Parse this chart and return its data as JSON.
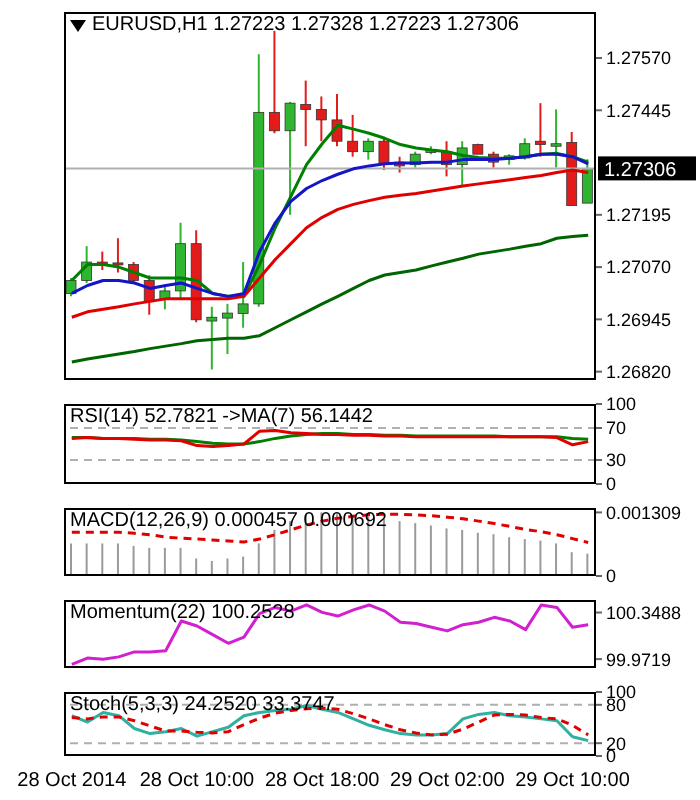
{
  "chart_data": [
    {
      "type": "candlestick",
      "title": "EURUSD,H1  1.27223 1.27328 1.27223 1.27306",
      "tick_labels": "y",
      "categories": [
        null,
        null,
        null,
        null,
        null,
        null,
        null,
        null,
        null,
        null,
        null,
        null,
        null,
        null,
        null,
        null,
        null,
        null,
        null,
        null,
        null,
        null,
        null,
        null,
        null,
        null,
        null,
        null,
        null,
        null,
        null,
        null,
        null,
        null
      ],
      "ohlc": [
        [
          1.27007,
          1.27044,
          1.27,
          1.27038
        ],
        [
          1.27038,
          1.2712,
          1.27032,
          1.27082
        ],
        [
          1.27082,
          1.27107,
          1.27063,
          1.27076
        ],
        [
          1.2708,
          1.27139,
          1.27057,
          1.27076
        ],
        [
          1.27076,
          1.27082,
          1.27032,
          1.27038
        ],
        [
          1.27038,
          1.2705,
          1.26956,
          1.26988
        ],
        [
          1.26994,
          1.27026,
          1.26969,
          1.27013
        ],
        [
          1.27013,
          1.27176,
          1.26994,
          1.27126
        ],
        [
          1.27126,
          1.27158,
          1.26938,
          1.26944
        ],
        [
          1.26941,
          1.26975,
          1.26825,
          1.2695
        ],
        [
          1.26948,
          1.26982,
          1.26862,
          1.2696
        ],
        [
          1.26959,
          1.27082,
          1.26925,
          1.26982
        ],
        [
          1.26982,
          1.27579,
          1.26975,
          1.2744
        ],
        [
          1.2744,
          1.27635,
          1.2739,
          1.27396
        ],
        [
          1.27396,
          1.27465,
          1.27195,
          1.27462
        ],
        [
          1.27459,
          1.27516,
          1.27359,
          1.27447
        ],
        [
          1.27447,
          1.27478,
          1.27371,
          1.27422
        ],
        [
          1.27422,
          1.27484,
          1.27359,
          1.27371
        ],
        [
          1.27371,
          1.27434,
          1.27334,
          1.27346
        ],
        [
          1.27346,
          1.27378,
          1.27327,
          1.27371
        ],
        [
          1.27371,
          1.27378,
          1.27302,
          1.27315
        ],
        [
          1.27321,
          1.27334,
          1.27296,
          1.27312
        ],
        [
          1.27315,
          1.27346,
          1.27308,
          1.2734
        ],
        [
          1.27344,
          1.27359,
          1.2734,
          1.2735
        ],
        [
          1.27346,
          1.27371,
          1.27287,
          1.27315
        ],
        [
          1.27315,
          1.27371,
          1.27264,
          1.27355
        ],
        [
          1.27363,
          1.27365,
          1.2734,
          1.2734
        ],
        [
          1.2734,
          1.27346,
          1.27308,
          1.27321
        ],
        [
          1.27327,
          1.2734,
          1.27315,
          1.27336
        ],
        [
          1.27331,
          1.27378,
          1.27327,
          1.27365
        ],
        [
          1.27371,
          1.27462,
          1.27334,
          1.27363
        ],
        [
          1.27359,
          1.27447,
          1.27308,
          1.27365
        ],
        [
          1.27368,
          1.27393,
          1.27217,
          1.27217
        ],
        [
          1.27223,
          1.27328,
          1.27223,
          1.27306
        ]
      ],
      "colors": [
        "#2fb52f",
        "#2fb52f",
        "#e41b1b",
        "#e41b1b",
        "#e41b1b",
        "#e41b1b",
        "#2fb52f",
        "#2fb52f",
        "#e41b1b",
        "#2fb52f",
        "#2fb52f",
        "#2fb52f",
        "#2fb52f",
        "#e41b1b",
        "#2fb52f",
        "#e41b1b",
        "#e41b1b",
        "#e41b1b",
        "#e41b1b",
        "#2fb52f",
        "#e41b1b",
        "#e41b1b",
        "#2fb52f",
        "#2fb52f",
        "#e41b1b",
        "#2fb52f",
        "#e41b1b",
        "#e41b1b",
        "#2fb52f",
        "#2fb52f",
        "#e41b1b",
        "#2fb52f",
        "#e41b1b",
        "#2fb52f"
      ],
      "series": [
        {
          "type": "line",
          "color": "#008000",
          "values": [
            1.27038,
            1.27076,
            1.27076,
            1.2707,
            1.27057,
            1.27044,
            1.27044,
            1.27044,
            1.27038,
            1.27007,
            1.27,
            1.27,
            1.27076,
            1.27164,
            1.27239,
            1.27315,
            1.27365,
            1.27409,
            1.274,
            1.2739,
            1.27378,
            1.27363,
            1.27355,
            1.2735,
            1.27346,
            1.27337,
            1.27332,
            1.2733,
            1.2733,
            1.27334,
            1.2734,
            1.27342,
            1.27334,
            1.27321
          ]
        },
        {
          "type": "line",
          "color": "#006400",
          "values": [
            1.26843,
            1.2685,
            1.26856,
            1.26862,
            1.26868,
            1.26875,
            1.26881,
            1.26887,
            1.26894,
            1.26897,
            1.269,
            1.269,
            1.26906,
            1.26925,
            1.26944,
            1.26963,
            1.26982,
            1.27,
            1.27019,
            1.27038,
            1.27051,
            1.27057,
            1.27063,
            1.27073,
            1.27082,
            1.27091,
            1.27101,
            1.27107,
            1.27113,
            1.2712,
            1.27126,
            1.27139,
            1.27143,
            1.27146
          ]
        },
        {
          "type": "line",
          "color": "#e00000",
          "values": [
            1.2695,
            1.26963,
            1.26969,
            1.26975,
            1.26982,
            1.26988,
            1.26994,
            1.26994,
            1.26994,
            1.26994,
            1.26994,
            1.27,
            1.27044,
            1.27088,
            1.27126,
            1.27164,
            1.27189,
            1.27208,
            1.2722,
            1.27229,
            1.27237,
            1.27242,
            1.27246,
            1.27252,
            1.27258,
            1.27264,
            1.27269,
            1.27274,
            1.27279,
            1.27284,
            1.27289,
            1.27296,
            1.27302,
            1.27296
          ]
        },
        {
          "type": "line",
          "color": "#1414c8",
          "values": [
            1.27007,
            1.27026,
            1.27038,
            1.27038,
            1.27032,
            1.27019,
            1.27026,
            1.27032,
            1.27019,
            1.27007,
            1.27,
            1.27007,
            1.27107,
            1.27176,
            1.27227,
            1.27258,
            1.27277,
            1.27292,
            1.27305,
            1.27312,
            1.27317,
            1.27319,
            1.27319,
            1.27321,
            1.27321,
            1.27327,
            1.27327,
            1.27327,
            1.2733,
            1.27334,
            1.2734,
            1.2734,
            1.27334,
            1.27317
          ]
        }
      ],
      "ylim": [
        1.268,
        1.2768
      ],
      "yticks": [
        {
          "value": 1.2682,
          "label": "1.26820"
        },
        {
          "value": 1.26945,
          "label": "1.26945"
        },
        {
          "value": 1.2707,
          "label": "1.27070"
        },
        {
          "value": 1.27195,
          "label": "1.27195"
        },
        {
          "value": 1.27445,
          "label": "1.27445"
        },
        {
          "value": 1.2757,
          "label": "1.27570"
        }
      ],
      "ref_lines": [
        {
          "axis": "y",
          "value": 1.27306,
          "label": "1.27306",
          "color": "#b0b0b0"
        }
      ]
    },
    {
      "type": "line",
      "title": "RSI(14) 52.7821  ->MA(7) 56.1442",
      "tick_labels": "y",
      "categories": [
        null,
        null,
        null,
        null,
        null,
        null,
        null,
        null,
        null,
        null,
        null,
        null,
        null,
        null,
        null,
        null,
        null,
        null,
        null,
        null,
        null,
        null,
        null,
        null,
        null,
        null,
        null,
        null,
        null,
        null,
        null,
        null,
        null,
        null
      ],
      "series": [
        {
          "color": "#008000",
          "values": [
            58,
            58,
            57,
            57,
            57,
            56,
            56,
            55,
            53,
            51,
            50,
            50,
            53,
            57,
            60,
            62,
            63,
            63,
            62,
            62,
            61,
            61,
            60,
            60,
            60,
            60,
            60,
            60,
            59,
            59,
            59,
            59,
            57,
            56
          ]
        },
        {
          "color": "#e00000",
          "values": [
            57,
            58,
            57,
            57,
            56,
            55,
            55,
            54,
            48,
            47,
            48,
            50,
            66,
            67,
            64,
            63,
            62,
            62,
            61,
            61,
            60,
            60,
            59,
            59,
            59,
            59,
            59,
            59,
            59,
            59,
            59,
            58,
            49,
            53
          ]
        }
      ],
      "ylim": [
        0,
        100
      ],
      "yticks": [
        0,
        30,
        70,
        100
      ],
      "ref_lines": [
        {
          "axis": "y",
          "value": 70,
          "color": "#b0b0b0",
          "line_style": "dashed"
        },
        {
          "axis": "y",
          "value": 30,
          "color": "#b0b0b0",
          "line_style": "dashed"
        }
      ]
    },
    {
      "type": "bar",
      "title": "MACD(12,26,9) 0.000457 0.000692",
      "tick_labels": "y",
      "categories": [
        null,
        null,
        null,
        null,
        null,
        null,
        null,
        null,
        null,
        null,
        null,
        null,
        null,
        null,
        null,
        null,
        null,
        null,
        null,
        null,
        null,
        null,
        null,
        null,
        null,
        null,
        null,
        null,
        null,
        null,
        null,
        null,
        null,
        null
      ],
      "series": [
        {
          "type": "bar",
          "color": "#9a9a9a",
          "values": [
            0.00067,
            0.00067,
            0.00067,
            0.00067,
            0.00062,
            0.00058,
            0.00058,
            0.00058,
            0.00036,
            0.00031,
            0.00036,
            0.0004,
            0.00067,
            0.00095,
            0.00113,
            0.00126,
            0.00131,
            0.00127,
            0.00126,
            0.00122,
            0.00118,
            0.00113,
            0.00109,
            0.00104,
            0.00098,
            0.00095,
            0.00089,
            0.00086,
            0.0008,
            0.00076,
            0.00073,
            0.00067,
            0.00049,
            0.00046
          ]
        },
        {
          "type": "line",
          "color": "#e00000",
          "line_style": "dashed",
          "values": [
            0.0009,
            0.0009,
            0.0009,
            0.0009,
            0.00088,
            0.00085,
            0.0008,
            0.00078,
            0.00076,
            0.00074,
            0.00072,
            0.0007,
            0.00076,
            0.00085,
            0.00095,
            0.00105,
            0.00113,
            0.00119,
            0.00123,
            0.00126,
            0.00127,
            0.00127,
            0.00126,
            0.00124,
            0.00121,
            0.00118,
            0.00113,
            0.00108,
            0.00102,
            0.00096,
            0.00091,
            0.00085,
            0.00077,
            0.00069
          ]
        }
      ],
      "ylim": [
        0,
        0.0014
      ],
      "yticks": [
        0,
        0.001309
      ]
    },
    {
      "type": "line",
      "title": "Momentum(22) 100.2528",
      "tick_labels": "y",
      "categories": [
        null,
        null,
        null,
        null,
        null,
        null,
        null,
        null,
        null,
        null,
        null,
        null,
        null,
        null,
        null,
        null,
        null,
        null,
        null,
        null,
        null,
        null,
        null,
        null,
        null,
        null,
        null,
        null,
        null,
        null,
        null,
        null,
        null,
        null
      ],
      "series": [
        {
          "color": "#d020d0",
          "values": [
            99.93,
            99.98,
            99.97,
            99.99,
            100.03,
            100.03,
            100.04,
            100.28,
            100.24,
            100.17,
            100.1,
            100.15,
            100.34,
            100.39,
            100.36,
            100.41,
            100.35,
            100.32,
            100.37,
            100.41,
            100.36,
            100.27,
            100.26,
            100.23,
            100.2,
            100.25,
            100.27,
            100.31,
            100.28,
            100.21,
            100.41,
            100.39,
            100.23,
            100.25
          ]
        }
      ],
      "ylim": [
        99.9,
        100.45
      ],
      "yticks": [
        99.9719,
        100.3488
      ]
    },
    {
      "type": "line",
      "title": "Stoch(5,3,3) 24.2520 33.3747",
      "categories": [
        "28 Oct 2014",
        null,
        null,
        null,
        null,
        null,
        null,
        null,
        "28 Oct 10:00",
        null,
        null,
        null,
        null,
        null,
        null,
        null,
        "28 Oct 18:00",
        null,
        null,
        null,
        null,
        null,
        null,
        null,
        "29 Oct 02:00",
        null,
        null,
        null,
        null,
        null,
        null,
        null,
        "29 Oct 10:00",
        null
      ],
      "series": [
        {
          "color": "#30b0a0",
          "values": [
            63,
            53,
            68,
            63,
            43,
            35,
            38,
            43,
            31,
            38,
            45,
            63,
            68,
            71,
            73,
            79,
            73,
            68,
            58,
            48,
            41,
            35,
            33,
            33,
            35,
            58,
            65,
            68,
            63,
            61,
            58,
            55,
            30,
            24
          ]
        },
        {
          "color": "#e00000",
          "line_style": "dashed",
          "values": [
            60,
            58,
            61,
            61,
            55,
            47,
            39,
            39,
            37,
            36,
            38,
            49,
            59,
            67,
            71,
            74,
            75,
            73,
            66,
            58,
            49,
            41,
            36,
            33,
            34,
            42,
            53,
            64,
            65,
            64,
            60,
            58,
            48,
            33
          ]
        }
      ],
      "ylim": [
        0,
        100
      ],
      "yticks": [
        0,
        20,
        80,
        100
      ],
      "ref_lines": [
        {
          "axis": "y",
          "value": 80,
          "color": "#b0b0b0",
          "line_style": "dashed"
        },
        {
          "axis": "y",
          "value": 20,
          "color": "#b0b0b0",
          "line_style": "dashed"
        }
      ]
    }
  ]
}
